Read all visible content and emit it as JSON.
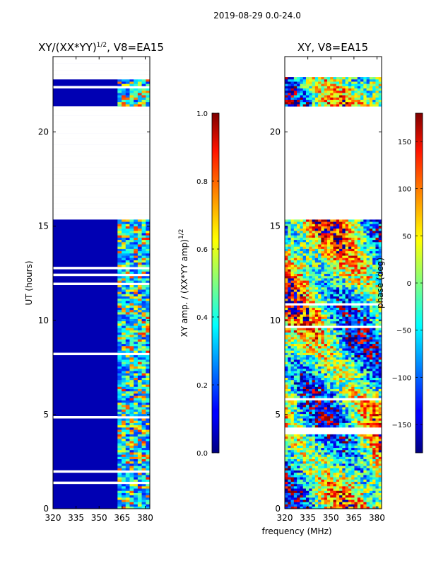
{
  "figure": {
    "suptitle": "2019-08-29 0.0-24.0",
    "xlabel": "frequency (MHz)"
  },
  "chart_data": [
    {
      "type": "heatmap",
      "title_main": "XY/(XX*YY)",
      "title_sup": "1/2",
      "title_rest": ", V8=EA15",
      "xlabel": "frequency (MHz)",
      "ylabel": "UT (hours)",
      "xlim": [
        320,
        383
      ],
      "ylim": [
        0,
        24
      ],
      "x_ticks": [
        320,
        335,
        350,
        365,
        380
      ],
      "x_tick_labels": [
        "320",
        "335",
        "350",
        "365",
        "380"
      ],
      "y_ticks": [
        0,
        5,
        10,
        15,
        20
      ],
      "y_tick_labels": [
        "0",
        "5",
        "10",
        "15",
        "20"
      ],
      "colormap": "jet",
      "colorbar": {
        "label_main": "XY amp. / (XX*YY amp)",
        "label_sup": "1/2",
        "range": [
          0.0,
          1.0
        ],
        "ticks": [
          0.0,
          0.2,
          0.4,
          0.6,
          0.8,
          1.0
        ],
        "tick_labels": [
          "0.0",
          "0.2",
          "0.4",
          "0.6",
          "0.8",
          "1.0"
        ]
      },
      "missing_time_ranges_hours": [
        [
          15.3,
          21.3
        ],
        [
          22.9,
          24.0
        ]
      ],
      "high_amplitude_band_mhz": [
        362,
        381
      ],
      "background_value": 0.05
    },
    {
      "type": "heatmap",
      "title": "XY, V8=EA15",
      "xlabel": "frequency (MHz)",
      "xlim": [
        320,
        383
      ],
      "ylim": [
        0,
        24
      ],
      "x_ticks": [
        320,
        335,
        350,
        365,
        380
      ],
      "x_tick_labels": [
        "320",
        "335",
        "350",
        "365",
        "380"
      ],
      "y_ticks": [
        0,
        5,
        10,
        15,
        20
      ],
      "y_tick_labels": [
        "0",
        "5",
        "10",
        "15",
        "20"
      ],
      "colormap": "jet",
      "colorbar": {
        "label": "phase (deg)",
        "range": [
          -180,
          180
        ],
        "ticks": [
          -150,
          -100,
          -50,
          0,
          50,
          100,
          150
        ],
        "tick_labels": [
          "−150",
          "−100",
          "−50",
          "0",
          "50",
          "100",
          "150"
        ]
      },
      "missing_time_ranges_hours": [
        [
          15.3,
          21.3
        ],
        [
          22.9,
          24.0
        ]
      ]
    }
  ]
}
